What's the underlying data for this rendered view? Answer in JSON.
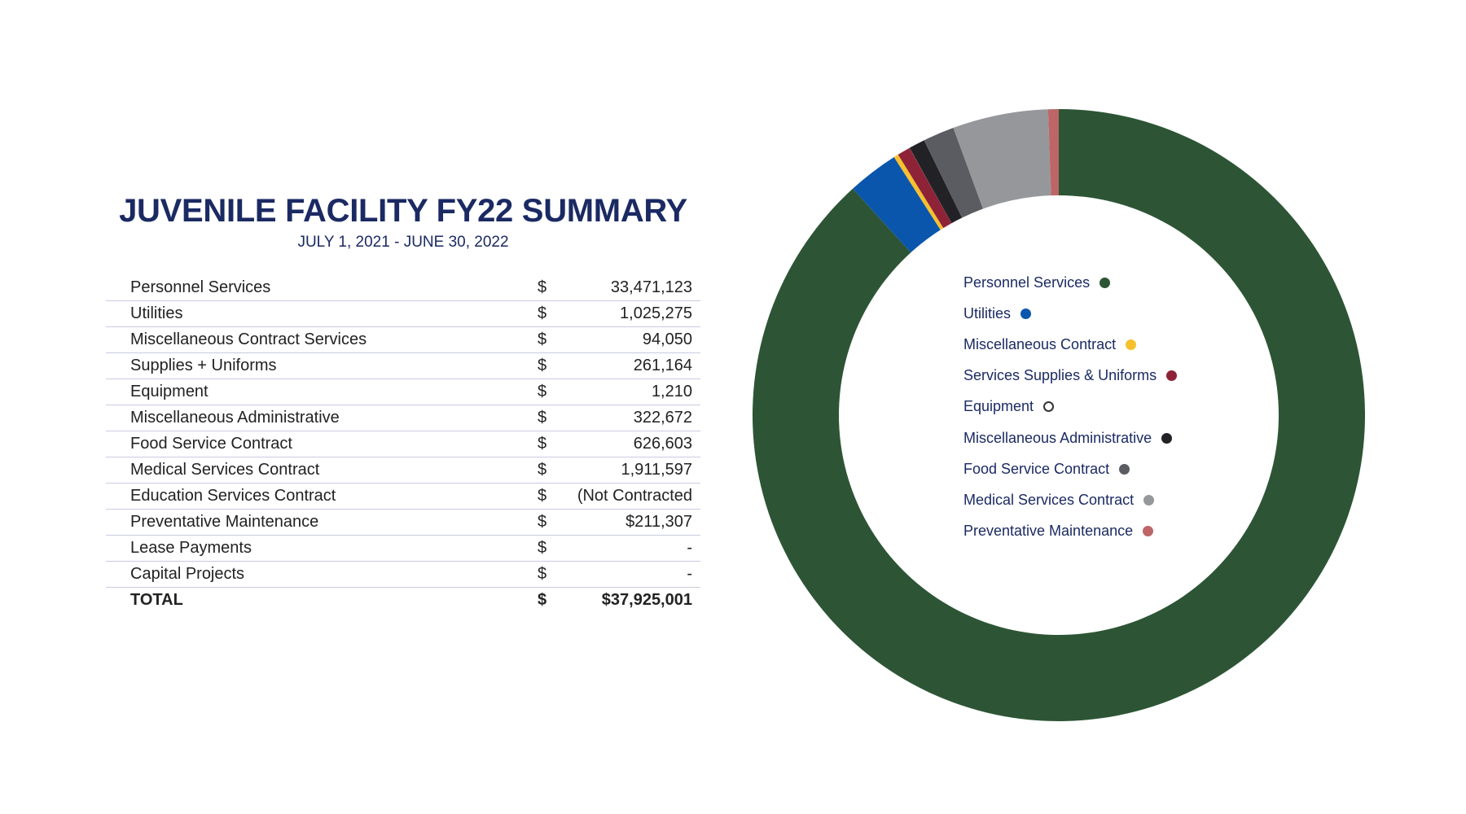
{
  "header": {
    "title": "JUVENILE FACILITY FY22 SUMMARY",
    "subtitle": "JULY 1, 2021 - JUNE 30, 2022"
  },
  "table": {
    "rows": [
      {
        "label": "Personnel Services",
        "currency": "$",
        "amount": "33,471,123"
      },
      {
        "label": "Utilities",
        "currency": "$",
        "amount": "1,025,275"
      },
      {
        "label": "Miscellaneous Contract Services",
        "currency": "$",
        "amount": "94,050"
      },
      {
        "label": "Supplies + Uniforms",
        "currency": "$",
        "amount": "261,164"
      },
      {
        "label": "Equipment",
        "currency": "$",
        "amount": "1,210"
      },
      {
        "label": "Miscellaneous Administrative",
        "currency": "$",
        "amount": "322,672"
      },
      {
        "label": "Food Service Contract",
        "currency": "$",
        "amount": "626,603"
      },
      {
        "label": "Medical Services Contract",
        "currency": "$",
        "amount": "1,911,597"
      },
      {
        "label": "Education Services Contract",
        "currency": "$",
        "amount": "(Not Contracted"
      },
      {
        "label": "Preventative Maintenance",
        "currency": "$",
        "amount": "$211,307"
      },
      {
        "label": "Lease Payments",
        "currency": "$",
        "amount": "-"
      },
      {
        "label": "Capital Projects",
        "currency": "$",
        "amount": "-"
      }
    ],
    "total": {
      "label": "TOTAL",
      "currency": "$",
      "amount": "$37,925,001"
    }
  },
  "chart_data": {
    "type": "pie",
    "style": "donut",
    "title": "",
    "legend_position": "center",
    "slices": [
      {
        "name": "Personnel Services",
        "value": 33471123,
        "color": "#2d5535"
      },
      {
        "name": "Utilities",
        "value": 1025275,
        "color": "#0b56ad"
      },
      {
        "name": "Miscellaneous Contract",
        "value": 94050,
        "color": "#f6c12d"
      },
      {
        "name": "Services Supplies & Uniforms",
        "value": 261164,
        "color": "#8e2337"
      },
      {
        "name": "Equipment",
        "value": 1210,
        "color": "#ffffff"
      },
      {
        "name": "Miscellaneous Administrative",
        "value": 322672,
        "color": "#222226"
      },
      {
        "name": "Food Service Contract",
        "value": 626603,
        "color": "#5b5c61"
      },
      {
        "name": "Medical Services Contract",
        "value": 1911597,
        "color": "#96979b"
      },
      {
        "name": "Preventative Maintenance",
        "value": 211307,
        "color": "#bd6567"
      }
    ]
  }
}
